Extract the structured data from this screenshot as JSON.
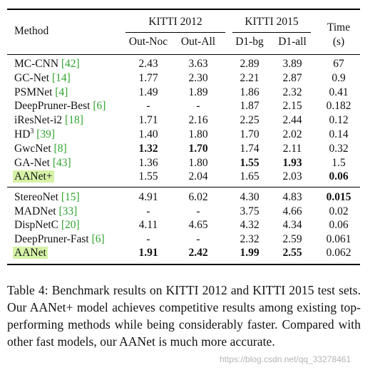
{
  "table": {
    "header": {
      "method": "Method",
      "group1": "KITTI 2012",
      "group2": "KITTI 2015",
      "time_line1": "Time",
      "time_line2": "(s)",
      "sub": [
        "Out-Noc",
        "Out-All",
        "D1-bg",
        "D1-all"
      ]
    },
    "rows_top": [
      {
        "name": "MC-CNN",
        "cite": "42",
        "vals": [
          "2.43",
          "3.63",
          "2.89",
          "3.89",
          "67"
        ]
      },
      {
        "name": "GC-Net",
        "cite": "14",
        "vals": [
          "1.77",
          "2.30",
          "2.21",
          "2.87",
          "0.9"
        ]
      },
      {
        "name": "PSMNet",
        "cite": "4",
        "vals": [
          "1.49",
          "1.89",
          "1.86",
          "2.32",
          "0.41"
        ]
      },
      {
        "name": "DeepPruner-Best",
        "cite": "6",
        "vals": [
          "-",
          "-",
          "1.87",
          "2.15",
          "0.182"
        ]
      },
      {
        "name": "iResNet-i2",
        "cite": "18",
        "vals": [
          "1.71",
          "2.16",
          "2.25",
          "2.44",
          "0.12"
        ]
      },
      {
        "name": "HD",
        "sup": "3",
        "cite": "39",
        "vals": [
          "1.40",
          "1.80",
          "1.70",
          "2.02",
          "0.14"
        ]
      },
      {
        "name": "GwcNet",
        "cite": "8",
        "vals": [
          "1.32",
          "1.70",
          "1.74",
          "2.11",
          "0.32"
        ]
      },
      {
        "name": "GA-Net",
        "cite": "43",
        "vals": [
          "1.36",
          "1.80",
          "1.55",
          "1.93",
          "1.5"
        ]
      },
      {
        "name": "AANet+",
        "vals": [
          "1.55",
          "2.04",
          "1.65",
          "2.03",
          "0.06"
        ]
      }
    ],
    "rows_bottom": [
      {
        "name": "StereoNet",
        "cite": "15",
        "vals": [
          "4.91",
          "6.02",
          "4.30",
          "4.83",
          "0.015"
        ]
      },
      {
        "name": "MADNet",
        "cite": "33",
        "vals": [
          "-",
          "-",
          "3.75",
          "4.66",
          "0.02"
        ]
      },
      {
        "name": "DispNetC",
        "cite": "20",
        "vals": [
          "4.11",
          "4.65",
          "4.32",
          "4.34",
          "0.06"
        ]
      },
      {
        "name": "DeepPruner-Fast",
        "cite": "6",
        "vals": [
          "-",
          "-",
          "2.32",
          "2.59",
          "0.061"
        ]
      },
      {
        "name": "AANet",
        "vals": [
          "1.91",
          "2.42",
          "1.99",
          "2.55",
          "0.062"
        ]
      }
    ]
  },
  "caption": "Table 4: Benchmark results on KITTI 2012 and KITTI 2015 test sets. Our AANet+ model achieves competitive results among existing top-performing methods while being considerably faster. Compared with other fast models, our AANet is much more accurate.",
  "watermark": "https://blog.csdn.net/qq_33278461"
}
